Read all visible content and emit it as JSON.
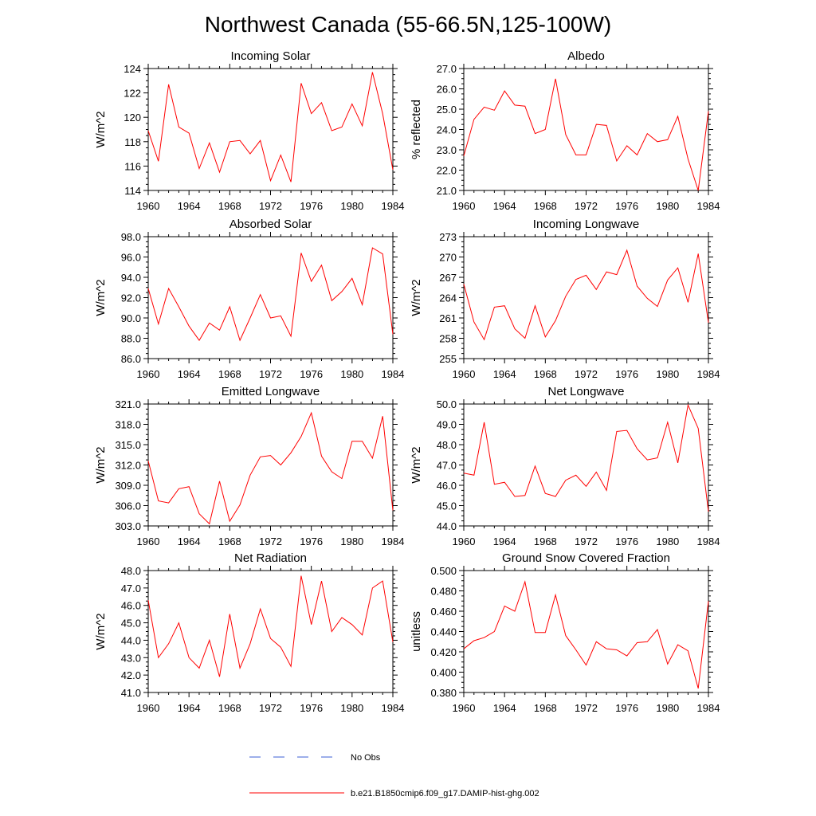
{
  "figure_title": "Northwest Canada (55-66.5N,125-100W)",
  "legend": {
    "items": [
      {
        "label": "No Obs",
        "color": "#3b5fd6",
        "style": "dashed"
      },
      {
        "label": "b.e21.B1850cmip6.f09_g17.DAMIP-hist-ghg.002",
        "color": "#ff0000",
        "style": "solid"
      }
    ]
  },
  "chart_data": [
    {
      "type": "line",
      "title": "Incoming Solar",
      "ylabel": "W/m^2",
      "xlim": [
        1960,
        1984
      ],
      "ylim": [
        114,
        124
      ],
      "xticks": [
        "1960",
        "1964",
        "1968",
        "1972",
        "1976",
        "1980",
        "1984"
      ],
      "yticks": [
        "114",
        "116",
        "118",
        "120",
        "122",
        "124"
      ],
      "x": [
        1960,
        1961,
        1962,
        1963,
        1964,
        1965,
        1966,
        1967,
        1968,
        1969,
        1970,
        1971,
        1972,
        1973,
        1974,
        1975,
        1976,
        1977,
        1978,
        1979,
        1980,
        1981,
        1982,
        1983,
        1984
      ],
      "series": [
        {
          "color": "#ff0000",
          "values": [
            118.9,
            116.4,
            122.7,
            119.2,
            118.7,
            115.8,
            117.9,
            115.5,
            118.0,
            118.1,
            117.0,
            118.1,
            114.8,
            116.9,
            114.7,
            122.8,
            120.3,
            121.2,
            118.9,
            119.2,
            121.1,
            119.3,
            123.7,
            120.3,
            115.7
          ]
        }
      ]
    },
    {
      "type": "line",
      "title": "Albedo",
      "ylabel": "% reflected",
      "xlim": [
        1960,
        1984
      ],
      "ylim": [
        21.0,
        27.0
      ],
      "xticks": [
        "1960",
        "1964",
        "1968",
        "1972",
        "1976",
        "1980",
        "1984"
      ],
      "yticks": [
        "21.0",
        "22.0",
        "23.0",
        "24.0",
        "25.0",
        "26.0",
        "27.0"
      ],
      "x": [
        1960,
        1961,
        1962,
        1963,
        1964,
        1965,
        1966,
        1967,
        1968,
        1969,
        1970,
        1971,
        1972,
        1973,
        1974,
        1975,
        1976,
        1977,
        1978,
        1979,
        1980,
        1981,
        1982,
        1983,
        1984
      ],
      "series": [
        {
          "color": "#ff0000",
          "values": [
            22.7,
            24.5,
            25.1,
            24.95,
            25.9,
            25.2,
            25.15,
            23.8,
            24.0,
            26.5,
            23.75,
            22.75,
            22.75,
            24.25,
            24.2,
            22.45,
            23.2,
            22.75,
            23.8,
            23.4,
            23.5,
            24.65,
            22.55,
            21.0,
            24.9
          ]
        }
      ]
    },
    {
      "type": "line",
      "title": "Absorbed Solar",
      "ylabel": "W/m^2",
      "xlim": [
        1960,
        1984
      ],
      "ylim": [
        86.0,
        98.0
      ],
      "xticks": [
        "1960",
        "1964",
        "1968",
        "1972",
        "1976",
        "1980",
        "1984"
      ],
      "yticks": [
        "86.0",
        "88.0",
        "90.0",
        "92.0",
        "94.0",
        "96.0",
        "98.0"
      ],
      "x": [
        1960,
        1961,
        1962,
        1963,
        1964,
        1965,
        1966,
        1967,
        1968,
        1969,
        1970,
        1971,
        1972,
        1973,
        1974,
        1975,
        1976,
        1977,
        1978,
        1979,
        1980,
        1981,
        1982,
        1983,
        1984
      ],
      "series": [
        {
          "color": "#ff0000",
          "values": [
            92.9,
            89.4,
            92.9,
            91.1,
            89.2,
            87.8,
            89.5,
            88.8,
            91.1,
            87.8,
            90.0,
            92.3,
            90.0,
            90.2,
            88.2,
            96.4,
            93.6,
            95.2,
            91.7,
            92.6,
            93.9,
            91.3,
            96.9,
            96.3,
            88.4
          ]
        }
      ]
    },
    {
      "type": "line",
      "title": "Incoming Longwave",
      "ylabel": "W/m^2",
      "xlim": [
        1960,
        1984
      ],
      "ylim": [
        255,
        273
      ],
      "xticks": [
        "1960",
        "1964",
        "1968",
        "1972",
        "1976",
        "1980",
        "1984"
      ],
      "yticks": [
        "255",
        "258",
        "261",
        "264",
        "267",
        "270",
        "273"
      ],
      "x": [
        1960,
        1961,
        1962,
        1963,
        1964,
        1965,
        1966,
        1967,
        1968,
        1969,
        1970,
        1971,
        1972,
        1973,
        1974,
        1975,
        1976,
        1977,
        1978,
        1979,
        1980,
        1981,
        1982,
        1983,
        1984
      ],
      "series": [
        {
          "color": "#ff0000",
          "values": [
            266.0,
            260.4,
            257.8,
            262.6,
            262.8,
            259.4,
            258.0,
            262.8,
            258.2,
            260.6,
            264.2,
            266.7,
            267.3,
            265.2,
            267.8,
            267.4,
            271.0,
            265.7,
            263.9,
            262.7,
            266.6,
            268.4,
            263.3,
            270.5,
            260.3
          ]
        }
      ]
    },
    {
      "type": "line",
      "title": "Emitted Longwave",
      "ylabel": "W/m^2",
      "xlim": [
        1960,
        1984
      ],
      "ylim": [
        303.0,
        321.0
      ],
      "xticks": [
        "1960",
        "1964",
        "1968",
        "1972",
        "1976",
        "1980",
        "1984"
      ],
      "yticks": [
        "303.0",
        "306.0",
        "309.0",
        "312.0",
        "315.0",
        "318.0",
        "321.0"
      ],
      "x": [
        1960,
        1961,
        1962,
        1963,
        1964,
        1965,
        1966,
        1967,
        1968,
        1969,
        1970,
        1971,
        1972,
        1973,
        1974,
        1975,
        1976,
        1977,
        1978,
        1979,
        1980,
        1981,
        1982,
        1983,
        1984
      ],
      "series": [
        {
          "color": "#ff0000",
          "values": [
            312.6,
            306.7,
            306.4,
            308.5,
            308.8,
            304.8,
            303.3,
            309.6,
            303.7,
            306.1,
            310.5,
            313.2,
            313.4,
            312.0,
            313.8,
            316.2,
            319.7,
            313.3,
            311.0,
            310.0,
            315.5,
            315.5,
            313.0,
            319.2,
            305.3
          ]
        }
      ]
    },
    {
      "type": "line",
      "title": "Net Longwave",
      "ylabel": "W/m^2",
      "xlim": [
        1960,
        1984
      ],
      "ylim": [
        44.0,
        50.0
      ],
      "xticks": [
        "1960",
        "1964",
        "1968",
        "1972",
        "1976",
        "1980",
        "1984"
      ],
      "yticks": [
        "44.0",
        "45.0",
        "46.0",
        "47.0",
        "48.0",
        "49.0",
        "50.0"
      ],
      "x": [
        1960,
        1961,
        1962,
        1963,
        1964,
        1965,
        1966,
        1967,
        1968,
        1969,
        1970,
        1971,
        1972,
        1973,
        1974,
        1975,
        1976,
        1977,
        1978,
        1979,
        1980,
        1981,
        1982,
        1983,
        1984
      ],
      "series": [
        {
          "color": "#ff0000",
          "values": [
            46.6,
            46.5,
            49.1,
            46.05,
            46.15,
            45.45,
            45.5,
            46.95,
            45.6,
            45.45,
            46.25,
            46.5,
            45.95,
            46.65,
            45.75,
            48.65,
            48.7,
            47.8,
            47.25,
            47.35,
            49.1,
            47.1,
            49.95,
            48.8,
            44.7
          ]
        }
      ]
    },
    {
      "type": "line",
      "title": "Net Radiation",
      "ylabel": "W/m^2",
      "xlim": [
        1960,
        1984
      ],
      "ylim": [
        41.0,
        48.0
      ],
      "xticks": [
        "1960",
        "1964",
        "1968",
        "1972",
        "1976",
        "1980",
        "1984"
      ],
      "yticks": [
        "41.0",
        "42.0",
        "43.0",
        "44.0",
        "45.0",
        "46.0",
        "47.0",
        "48.0"
      ],
      "x": [
        1960,
        1961,
        1962,
        1963,
        1964,
        1965,
        1966,
        1967,
        1968,
        1969,
        1970,
        1971,
        1972,
        1973,
        1974,
        1975,
        1976,
        1977,
        1978,
        1979,
        1980,
        1981,
        1982,
        1983,
        1984
      ],
      "series": [
        {
          "color": "#ff0000",
          "values": [
            46.3,
            43.0,
            43.8,
            45.0,
            43.0,
            42.4,
            44.0,
            41.9,
            45.5,
            42.4,
            43.8,
            45.8,
            44.1,
            43.6,
            42.5,
            47.7,
            44.9,
            47.4,
            44.5,
            45.3,
            44.9,
            44.3,
            47.0,
            47.4,
            43.9
          ]
        }
      ]
    },
    {
      "type": "line",
      "title": "Ground Snow Covered Fraction",
      "ylabel": "unitless",
      "xlim": [
        1960,
        1984
      ],
      "ylim": [
        0.38,
        0.5
      ],
      "xticks": [
        "1960",
        "1964",
        "1968",
        "1972",
        "1976",
        "1980",
        "1984"
      ],
      "yticks": [
        "0.380",
        "0.400",
        "0.420",
        "0.440",
        "0.460",
        "0.480",
        "0.500"
      ],
      "x": [
        1960,
        1961,
        1962,
        1963,
        1964,
        1965,
        1966,
        1967,
        1968,
        1969,
        1970,
        1971,
        1972,
        1973,
        1974,
        1975,
        1976,
        1977,
        1978,
        1979,
        1980,
        1981,
        1982,
        1983,
        1984
      ],
      "series": [
        {
          "color": "#ff0000",
          "values": [
            0.423,
            0.431,
            0.434,
            0.44,
            0.465,
            0.46,
            0.489,
            0.439,
            0.439,
            0.476,
            0.436,
            0.422,
            0.407,
            0.43,
            0.423,
            0.422,
            0.416,
            0.429,
            0.43,
            0.442,
            0.408,
            0.427,
            0.421,
            0.384,
            0.47
          ]
        }
      ]
    }
  ]
}
